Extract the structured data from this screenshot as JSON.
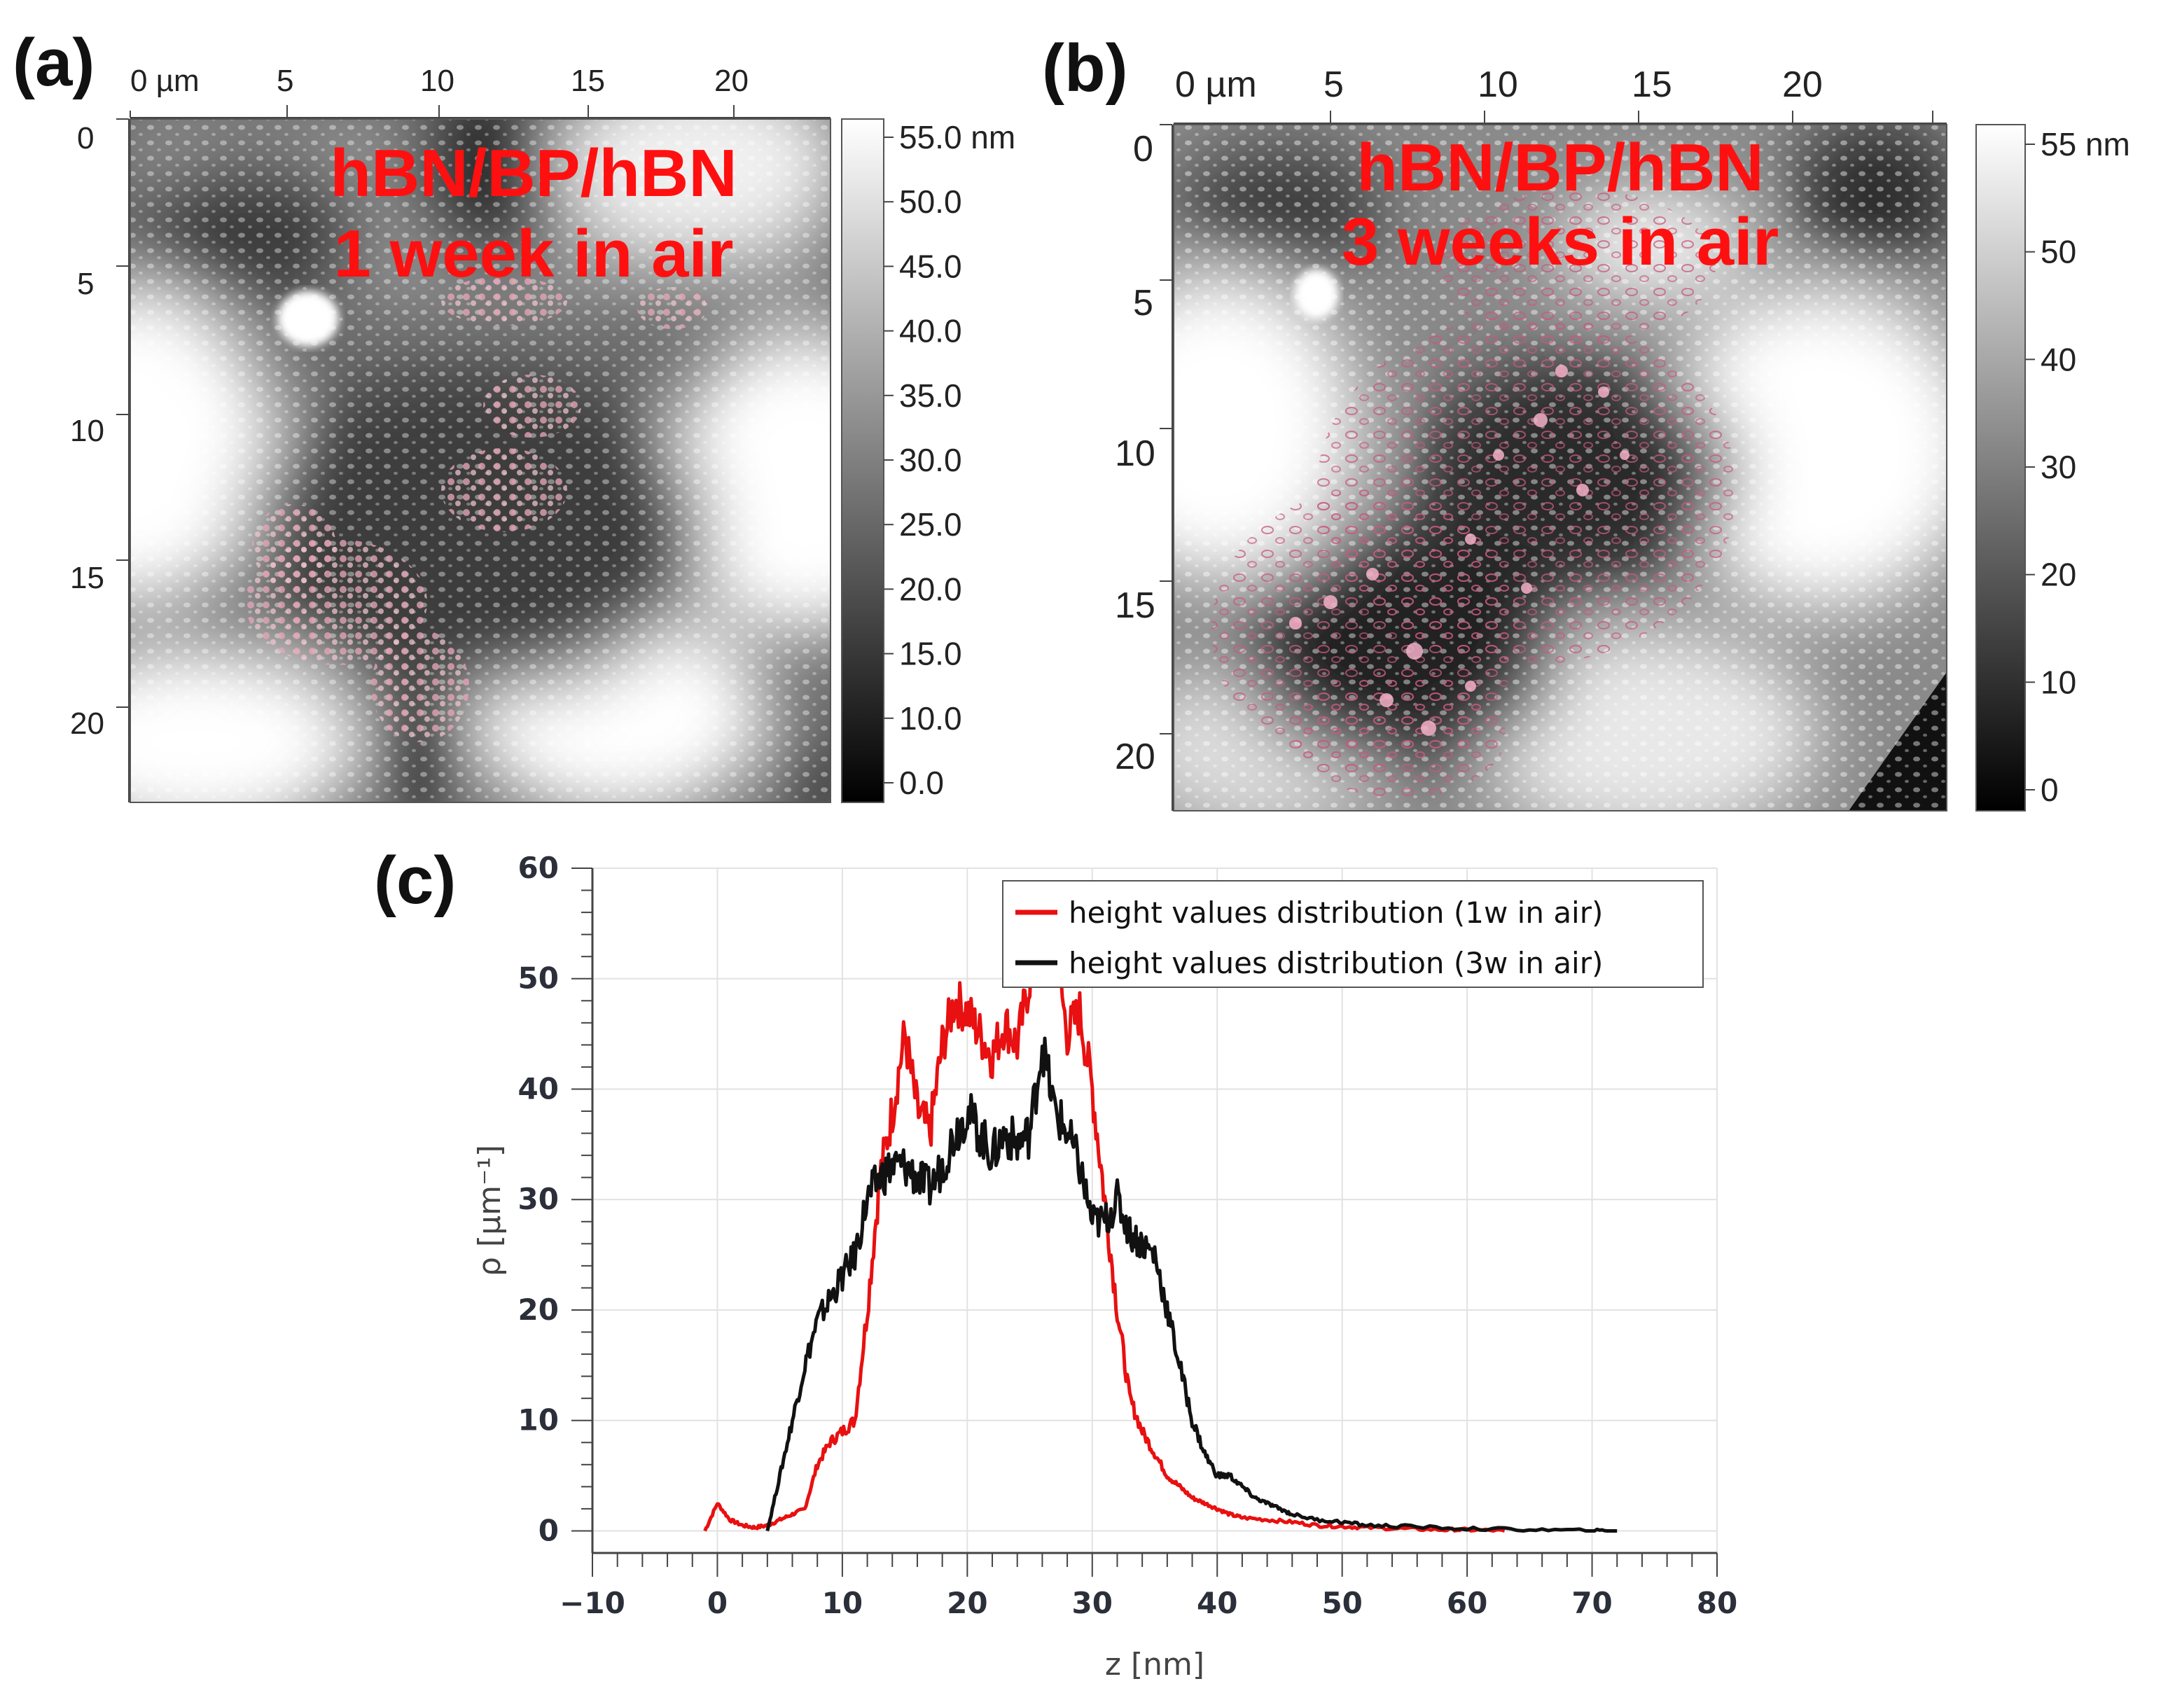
{
  "panels": {
    "a": {
      "label": "(a)",
      "x_ticks": [
        "0 µm",
        "5",
        "10",
        "15",
        "20"
      ],
      "y_ticks": [
        "0",
        "5",
        "10",
        "15",
        "20"
      ],
      "title_line1": "hBN/BP/hBN",
      "title_line2": "1 week in air",
      "colorbar_ticks": [
        "55.0 nm",
        "50.0",
        "45.0",
        "40.0",
        "35.0",
        "30.0",
        "25.0",
        "20.0",
        "15.0",
        "10.0",
        "0.0"
      ]
    },
    "b": {
      "label": "(b)",
      "x_ticks": [
        "0 µm",
        "5",
        "10",
        "15",
        "20"
      ],
      "y_ticks": [
        "0",
        "5",
        "10",
        "15",
        "20"
      ],
      "title_line1": "hBN/BP/hBN",
      "title_line2": "3 weeks in air",
      "colorbar_ticks": [
        "55 nm",
        "50",
        "40",
        "30",
        "20",
        "10",
        "0"
      ]
    },
    "c": {
      "label": "(c)"
    }
  },
  "chart_data": {
    "type": "line",
    "xlabel": "z [nm]",
    "ylabel": "ρ [µm⁻¹]",
    "xlim": [
      -10,
      80
    ],
    "ylim": [
      -2,
      60
    ],
    "x_ticks": [
      -10,
      0,
      10,
      20,
      30,
      40,
      50,
      60,
      70,
      80
    ],
    "x_tick_labels": [
      "−10",
      "0",
      "10",
      "20",
      "30",
      "40",
      "50",
      "60",
      "70",
      "80"
    ],
    "y_ticks": [
      0,
      10,
      20,
      30,
      40,
      50,
      60
    ],
    "y_tick_labels": [
      "0",
      "10",
      "20",
      "30",
      "40",
      "50",
      "60"
    ],
    "grid": true,
    "legend_position": "top-right",
    "series": [
      {
        "name": "height values distribution (1w in air)",
        "color": "#e81010",
        "x": [
          -1,
          0,
          1,
          2,
          3,
          4,
          5,
          6,
          7,
          8,
          9,
          10,
          11,
          12,
          13,
          14,
          15,
          16,
          17,
          18,
          19,
          20,
          21,
          22,
          23,
          24,
          25,
          26,
          27,
          28,
          29,
          30,
          31,
          32,
          33,
          34,
          35,
          36,
          37,
          38,
          39,
          40,
          41,
          42,
          44,
          46,
          48,
          50,
          52,
          55,
          58,
          60,
          63
        ],
        "y": [
          0,
          2.5,
          1,
          0.5,
          0.3,
          0.5,
          1,
          1.5,
          2,
          6,
          8,
          9,
          10,
          20,
          32,
          38,
          45,
          38,
          36,
          44,
          48,
          47,
          45,
          43,
          46,
          44,
          50,
          52,
          53,
          45,
          47,
          40,
          30,
          20,
          12,
          9,
          7,
          5,
          4,
          3,
          2.5,
          2,
          1.5,
          1.2,
          1,
          0.8,
          0.5,
          0.4,
          0.3,
          0.2,
          0.1,
          0.1,
          0
        ]
      },
      {
        "name": "height values distribution (3w in air)",
        "color": "#111111",
        "x": [
          4,
          5,
          6,
          7,
          8,
          9,
          10,
          11,
          12,
          13,
          14,
          15,
          16,
          17,
          18,
          19,
          20,
          21,
          22,
          23,
          24,
          25,
          26,
          27,
          28,
          29,
          30,
          31,
          32,
          33,
          34,
          35,
          36,
          37,
          38,
          39,
          40,
          41,
          42,
          43,
          44,
          45,
          46,
          48,
          50,
          52,
          55,
          60,
          65,
          70,
          72
        ],
        "y": [
          0,
          5,
          10,
          15,
          19,
          21,
          23,
          25,
          30,
          32,
          33,
          33,
          32,
          31,
          33,
          36,
          38,
          36,
          34,
          36,
          35,
          36,
          44,
          38,
          36,
          33,
          28,
          28,
          30,
          27,
          26,
          25,
          20,
          15,
          10,
          7,
          5,
          5,
          4,
          3,
          2.5,
          2,
          1.5,
          1,
          0.8,
          0.5,
          0.4,
          0.2,
          0.1,
          0,
          0
        ]
      }
    ]
  }
}
